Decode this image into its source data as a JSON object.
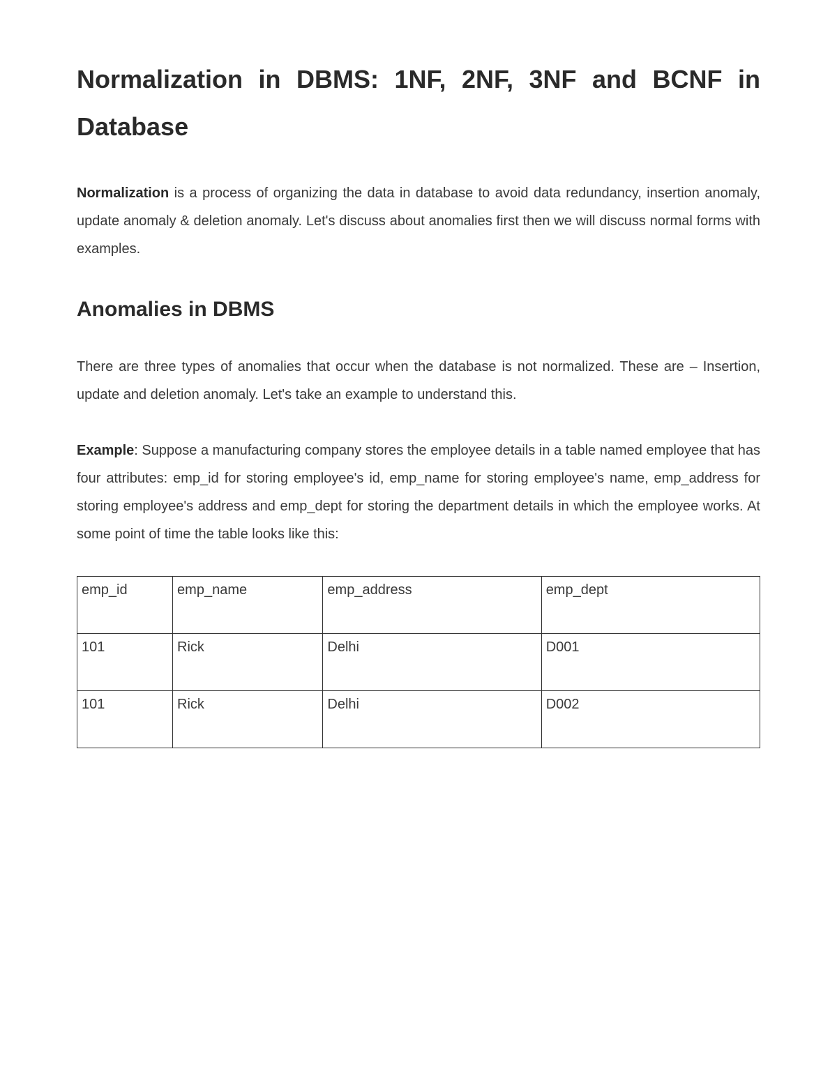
{
  "heading1": "Normalization in DBMS: 1NF, 2NF, 3NF and BCNF in Database",
  "intro": {
    "lead": "Normalization",
    "rest": " is a process of organizing the data in database to avoid data redundancy, insertion anomaly, update anomaly & deletion anomaly. Let's discuss about anomalies first then we will discuss normal forms with examples."
  },
  "heading2": "Anomalies in DBMS",
  "para2": "There are three types of anomalies that occur when the database is not normalized. These are – Insertion, update and deletion anomaly. Let's take an example to understand this.",
  "example": {
    "lead": "Example",
    "rest": ": Suppose a manufacturing company stores the employee details in a table named employee that has four attributes: emp_id for storing employee's id, emp_name for storing employee's name, emp_address for storing employee's address and emp_dept for storing the department details in which the employee works. At some point of time the table looks like this:"
  },
  "table": {
    "headers": [
      "emp_id",
      "emp_name",
      "emp_address",
      "emp_dept"
    ],
    "rows": [
      [
        "101",
        "Rick",
        "Delhi",
        "D001"
      ],
      [
        "101",
        "Rick",
        "Delhi",
        "D002"
      ]
    ]
  }
}
